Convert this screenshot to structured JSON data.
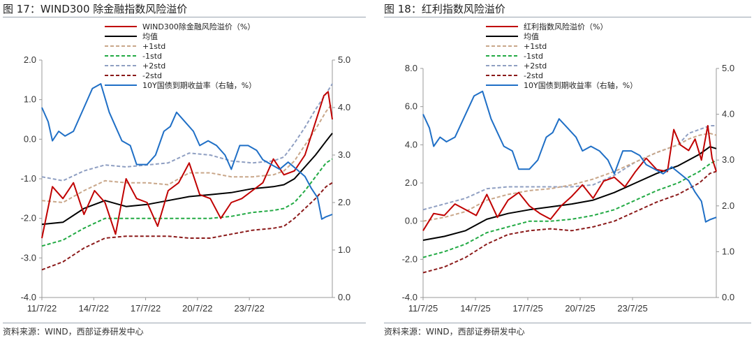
{
  "charts": [
    {
      "figure_title": "图 17：WIND300 除金融指数风险溢价",
      "source": "资料来源：WIND，西部证券研发中心",
      "colors": {
        "premium": "#c00000",
        "mean": "#000000",
        "plus1": "#c9a78a",
        "minus1": "#22aa44",
        "plus2": "#8f9fc2",
        "minus2": "#8b1a1a",
        "yield": "#1f6fc6"
      },
      "chart_data": {
        "type": "line",
        "x_ticks": [
          "11/7/22",
          "14/7/22",
          "17/7/22",
          "20/7/22",
          "23/7/22"
        ],
        "x_range": [
          2011.5,
          2025.3
        ],
        "ylim_left": [
          -4.0,
          2.0
        ],
        "yticks_left": [
          "2.0",
          "1.0",
          "0.0",
          "-1.0",
          "-2.0",
          "-3.0",
          "-4.0"
        ],
        "ylim_right": [
          0.0,
          5.0
        ],
        "yticks_right": [
          "5.0",
          "4.0",
          "3.0",
          "2.0",
          "1.0",
          "0.0"
        ],
        "legend_position": "top-center",
        "series": [
          {
            "name": "WIND300除金融风险溢价（%）",
            "axis": "left",
            "key": "premium",
            "x": [
              2011.5,
              2012.0,
              2012.5,
              2013.0,
              2013.5,
              2014.0,
              2014.5,
              2015.0,
              2015.5,
              2016.0,
              2016.5,
              2017.0,
              2017.5,
              2018.0,
              2018.5,
              2019.0,
              2019.5,
              2020.0,
              2020.5,
              2021.0,
              2021.5,
              2022.0,
              2022.5,
              2023.0,
              2023.5,
              2024.0,
              2024.3,
              2024.6,
              2024.9,
              2025.1,
              2025.3
            ],
            "y": [
              -2.5,
              -1.2,
              -1.5,
              -1.1,
              -1.9,
              -1.3,
              -1.6,
              -2.4,
              -1.0,
              -1.5,
              -1.6,
              -2.2,
              -1.3,
              -1.1,
              -0.6,
              -1.4,
              -1.5,
              -2.0,
              -1.6,
              -1.5,
              -1.3,
              -1.1,
              -0.5,
              -0.9,
              -0.8,
              -0.4,
              0.1,
              0.6,
              1.1,
              1.2,
              0.5
            ]
          },
          {
            "name": "均值",
            "axis": "left",
            "key": "mean",
            "x": [
              2011.5,
              2012.5,
              2013.5,
              2014.5,
              2015.5,
              2016.5,
              2017.5,
              2018.5,
              2019.5,
              2020.5,
              2021.5,
              2022.5,
              2023.0,
              2023.5,
              2024.0,
              2024.5,
              2025.0,
              2025.3
            ],
            "y": [
              -2.15,
              -2.1,
              -1.75,
              -1.55,
              -1.7,
              -1.65,
              -1.55,
              -1.45,
              -1.4,
              -1.35,
              -1.25,
              -1.2,
              -1.15,
              -1.0,
              -0.7,
              -0.4,
              -0.05,
              0.15
            ]
          },
          {
            "name": "+1std",
            "axis": "left",
            "key": "plus1",
            "x": [
              2011.5,
              2012.5,
              2013.5,
              2014.5,
              2015.5,
              2016.5,
              2017.5,
              2018.5,
              2019.5,
              2020.5,
              2021.5,
              2022.5,
              2023.0,
              2023.5,
              2024.0,
              2024.5,
              2025.0,
              2025.3
            ],
            "y": [
              -1.55,
              -1.6,
              -1.3,
              -1.05,
              -1.1,
              -1.1,
              -1.15,
              -0.85,
              -0.85,
              -0.95,
              -0.95,
              -0.9,
              -0.8,
              -0.55,
              -0.15,
              0.25,
              0.7,
              0.9
            ]
          },
          {
            "name": "-1std",
            "axis": "left",
            "key": "minus1",
            "x": [
              2011.5,
              2012.5,
              2013.5,
              2014.5,
              2015.5,
              2016.5,
              2017.5,
              2018.5,
              2019.5,
              2020.5,
              2021.5,
              2022.5,
              2023.0,
              2023.5,
              2024.0,
              2024.5,
              2025.0,
              2025.3
            ],
            "y": [
              -2.7,
              -2.55,
              -2.25,
              -2.0,
              -2.0,
              -2.0,
              -2.0,
              -2.0,
              -2.0,
              -1.95,
              -1.85,
              -1.8,
              -1.75,
              -1.6,
              -1.3,
              -0.95,
              -0.6,
              -0.5
            ]
          },
          {
            "name": "+2std",
            "axis": "left",
            "key": "plus2",
            "x": [
              2011.5,
              2012.5,
              2013.5,
              2014.5,
              2015.5,
              2016.5,
              2017.5,
              2018.5,
              2019.5,
              2020.5,
              2021.5,
              2022.5,
              2023.0,
              2023.5,
              2024.0,
              2024.5,
              2025.0,
              2025.3
            ],
            "y": [
              -0.95,
              -1.05,
              -0.8,
              -0.65,
              -0.7,
              -0.65,
              -0.6,
              -0.35,
              -0.4,
              -0.55,
              -0.6,
              -0.55,
              -0.45,
              -0.1,
              0.3,
              0.75,
              1.15,
              1.4
            ]
          },
          {
            "name": "-2std",
            "axis": "left",
            "key": "minus2",
            "x": [
              2011.5,
              2012.5,
              2013.5,
              2014.5,
              2015.5,
              2016.5,
              2017.5,
              2018.5,
              2019.5,
              2020.5,
              2021.5,
              2022.5,
              2023.0,
              2023.5,
              2024.0,
              2024.5,
              2025.0,
              2025.3
            ],
            "y": [
              -3.3,
              -3.1,
              -2.75,
              -2.5,
              -2.45,
              -2.45,
              -2.45,
              -2.5,
              -2.5,
              -2.4,
              -2.3,
              -2.25,
              -2.2,
              -2.0,
              -1.75,
              -1.5,
              -1.2,
              -1.1
            ]
          },
          {
            "name": "10Y国债到期收益率（右轴，%）",
            "axis": "right",
            "key": "yield",
            "x": [
              2011.5,
              2011.8,
              2012.0,
              2012.3,
              2012.6,
              2013.0,
              2013.5,
              2013.9,
              2014.3,
              2014.7,
              2015.0,
              2015.3,
              2015.7,
              2016.0,
              2016.5,
              2016.9,
              2017.3,
              2017.6,
              2017.9,
              2018.3,
              2018.7,
              2019.0,
              2019.4,
              2019.8,
              2020.2,
              2020.5,
              2020.9,
              2021.3,
              2021.7,
              2022.0,
              2022.4,
              2022.8,
              2023.2,
              2023.6,
              2024.0,
              2024.3,
              2024.6,
              2024.8,
              2025.0,
              2025.3
            ],
            "y": [
              4.0,
              3.7,
              3.3,
              3.5,
              3.4,
              3.5,
              4.0,
              4.4,
              4.5,
              3.9,
              3.6,
              3.3,
              3.2,
              2.8,
              2.8,
              3.0,
              3.5,
              3.6,
              3.9,
              3.7,
              3.5,
              3.2,
              3.3,
              3.2,
              3.0,
              2.7,
              3.2,
              3.2,
              3.1,
              2.9,
              2.8,
              2.7,
              2.85,
              2.7,
              2.55,
              2.3,
              2.1,
              1.65,
              1.7,
              1.75
            ]
          }
        ]
      }
    },
    {
      "figure_title": "图 18：红利指数风险溢价",
      "source": "资料来源：WIND，西部证券研发中心",
      "colors": {
        "premium": "#c00000",
        "mean": "#000000",
        "plus1": "#c9a78a",
        "minus1": "#22aa44",
        "plus2": "#8f9fc2",
        "minus2": "#8b1a1a",
        "yield": "#1f6fc6"
      },
      "chart_data": {
        "type": "line",
        "x_ticks": [
          "11/7/25",
          "14/7/25",
          "17/7/25",
          "20/7/25",
          "23/7/25"
        ],
        "x_range": [
          2011.5,
          2025.3
        ],
        "ylim_left": [
          -4.0,
          8.0
        ],
        "yticks_left": [
          "8.0",
          "6.0",
          "4.0",
          "2.0",
          "0.0",
          "-2.0",
          "-4.0"
        ],
        "ylim_right": [
          0.0,
          5.0
        ],
        "yticks_right": [
          "5.0",
          "4.0",
          "3.0",
          "2.0",
          "1.0",
          "0.0"
        ],
        "legend_position": "top-center",
        "series": [
          {
            "name": "红利指数风险溢价（%）",
            "axis": "left",
            "key": "premium",
            "x": [
              2011.5,
              2012.0,
              2012.5,
              2013.0,
              2013.5,
              2014.0,
              2014.5,
              2015.0,
              2015.5,
              2016.0,
              2016.5,
              2017.0,
              2017.5,
              2018.0,
              2018.5,
              2019.0,
              2019.5,
              2020.0,
              2020.5,
              2021.0,
              2021.5,
              2022.0,
              2022.5,
              2023.0,
              2023.3,
              2023.6,
              2024.0,
              2024.3,
              2024.6,
              2024.9,
              2025.1,
              2025.3
            ],
            "y": [
              -0.5,
              0.4,
              0.3,
              0.9,
              0.6,
              0.3,
              1.4,
              0.2,
              1.1,
              1.5,
              0.8,
              0.4,
              0.1,
              0.8,
              1.3,
              1.9,
              1.2,
              2.1,
              2.3,
              1.8,
              2.6,
              3.3,
              2.7,
              2.6,
              4.8,
              4.0,
              3.7,
              4.3,
              3.2,
              5.0,
              3.3,
              2.6
            ]
          },
          {
            "name": "均值",
            "axis": "left",
            "key": "mean",
            "x": [
              2011.5,
              2012.5,
              2013.5,
              2014.5,
              2015.5,
              2016.5,
              2017.5,
              2018.5,
              2019.5,
              2020.5,
              2021.5,
              2022.5,
              2023.5,
              2024.0,
              2024.5,
              2025.0,
              2025.3
            ],
            "y": [
              -1.0,
              -0.8,
              -0.5,
              0.1,
              0.4,
              0.6,
              0.75,
              0.9,
              1.1,
              1.5,
              2.0,
              2.5,
              2.9,
              3.2,
              3.5,
              3.9,
              3.8
            ]
          },
          {
            "name": "+1std",
            "axis": "left",
            "key": "plus1",
            "x": [
              2011.5,
              2012.5,
              2013.5,
              2014.5,
              2015.5,
              2016.5,
              2017.5,
              2018.5,
              2019.5,
              2020.5,
              2021.5,
              2022.5,
              2023.5,
              2024.0,
              2024.5,
              2025.0,
              2025.3
            ],
            "y": [
              0.0,
              0.2,
              0.5,
              1.1,
              1.4,
              1.6,
              1.7,
              1.9,
              2.2,
              2.6,
              3.1,
              3.6,
              4.0,
              4.3,
              4.5,
              4.6,
              4.5
            ]
          },
          {
            "name": "-1std",
            "axis": "left",
            "key": "minus1",
            "x": [
              2011.5,
              2012.5,
              2013.5,
              2014.5,
              2015.5,
              2016.5,
              2017.5,
              2018.5,
              2019.5,
              2020.5,
              2021.5,
              2022.5,
              2023.5,
              2024.0,
              2024.5,
              2025.0,
              2025.3
            ],
            "y": [
              -1.9,
              -1.6,
              -1.2,
              -0.6,
              -0.3,
              0.0,
              0.0,
              0.1,
              0.3,
              0.6,
              1.1,
              1.6,
              2.0,
              2.3,
              2.6,
              3.0,
              3.2
            ]
          },
          {
            "name": "+2std",
            "axis": "left",
            "key": "plus2",
            "x": [
              2011.5,
              2012.5,
              2013.5,
              2014.5,
              2015.5,
              2016.5,
              2017.5,
              2018.5,
              2019.5,
              2020.5,
              2021.5,
              2022.5,
              2023.5,
              2024.0,
              2024.5,
              2025.0,
              2025.3
            ],
            "y": [
              0.6,
              0.9,
              1.2,
              1.7,
              1.8,
              1.8,
              1.8,
              1.8,
              1.9,
              2.4,
              3.1,
              3.6,
              4.0,
              4.6,
              4.8,
              5.0,
              5.0
            ]
          },
          {
            "name": "-2std",
            "axis": "left",
            "key": "minus2",
            "x": [
              2011.5,
              2012.5,
              2013.5,
              2014.5,
              2015.5,
              2016.5,
              2017.5,
              2018.5,
              2019.5,
              2020.5,
              2021.5,
              2022.5,
              2023.5,
              2024.0,
              2024.5,
              2025.0,
              2025.3
            ],
            "y": [
              -2.7,
              -2.4,
              -1.9,
              -1.2,
              -0.7,
              -0.5,
              -0.4,
              -0.5,
              -0.3,
              0.0,
              0.5,
              1.0,
              1.4,
              1.7,
              2.0,
              2.5,
              2.6
            ]
          },
          {
            "name": "10Y国债到期收益率（右轴，%）",
            "axis": "right",
            "key": "yield",
            "x": [
              2011.5,
              2011.8,
              2012.0,
              2012.3,
              2012.6,
              2013.0,
              2013.5,
              2013.9,
              2014.3,
              2014.7,
              2015.0,
              2015.3,
              2015.7,
              2016.0,
              2016.5,
              2016.9,
              2017.3,
              2017.6,
              2017.9,
              2018.3,
              2018.7,
              2019.0,
              2019.4,
              2019.8,
              2020.2,
              2020.5,
              2020.9,
              2021.3,
              2021.7,
              2022.0,
              2022.4,
              2022.8,
              2023.2,
              2023.6,
              2024.0,
              2024.3,
              2024.6,
              2024.8,
              2025.0,
              2025.3
            ],
            "y": [
              4.0,
              3.7,
              3.3,
              3.5,
              3.4,
              3.5,
              4.0,
              4.4,
              4.5,
              3.9,
              3.6,
              3.3,
              3.2,
              2.8,
              2.8,
              3.0,
              3.5,
              3.6,
              3.9,
              3.7,
              3.5,
              3.2,
              3.3,
              3.2,
              3.0,
              2.7,
              3.2,
              3.2,
              3.1,
              2.9,
              2.8,
              2.7,
              2.85,
              2.7,
              2.55,
              2.3,
              2.1,
              1.65,
              1.7,
              1.75
            ]
          }
        ]
      }
    }
  ]
}
